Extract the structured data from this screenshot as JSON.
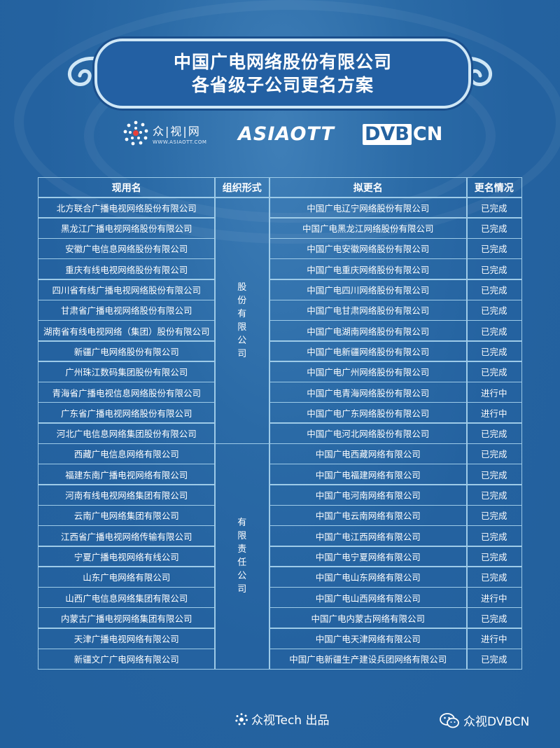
{
  "banner": {
    "line1": "中国广电网络股份有限公司",
    "line2": "各省级子公司更名方案"
  },
  "logos": {
    "zsw_name": "众|视|网",
    "zsw_url": "WWW.ASIAOTT.COM",
    "asiaott": "ASIAOTT",
    "dvbcn_dvb": "DVB",
    "dvbcn_cn": "CN"
  },
  "table": {
    "headers": [
      "现用名",
      "组织形式",
      "拟更名",
      "更名情况"
    ],
    "org_form_1": "股\n份\n有\n限\n公\n司",
    "org_form_2": "有\n限\n责\n任\n公\n司",
    "rows": [
      {
        "current": "北方联合广播电视网络股份有限公司",
        "proposed": "中国广电辽宁网络股份有限公司",
        "status": "已完成"
      },
      {
        "current": "黑龙江广播电视网络股份有限公司",
        "proposed": "中国广电黑龙江网络股份有限公司",
        "status": "已完成"
      },
      {
        "current": "安徽广电信息网络股份有限公司",
        "proposed": "中国广电安徽网络股份有限公司",
        "status": "已完成"
      },
      {
        "current": "重庆有线电视网络股份有限公司",
        "proposed": "中国广电重庆网络股份有限公司",
        "status": "已完成"
      },
      {
        "current": "四川省有线广播电视网络股份有限公司",
        "proposed": "中国广电四川网络股份有限公司",
        "status": "已完成"
      },
      {
        "current": "甘肃省广播电视网络股份有限公司",
        "proposed": "中国广电甘肃网络股份有限公司",
        "status": "已完成"
      },
      {
        "current": "湖南省有线电视网络（集团）股份有限公司",
        "proposed": "中国广电湖南网络股份有限公司",
        "status": "已完成"
      },
      {
        "current": "新疆广电网络股份有限公司",
        "proposed": "中国广电新疆网络股份有限公司",
        "status": "已完成"
      },
      {
        "current": "广州珠江数码集团股份有限公司",
        "proposed": "中国广电广州网络股份有限公司",
        "status": "已完成"
      },
      {
        "current": "青海省广播电视信息网络股份有限公司",
        "proposed": "中国广电青海网络股份有限公司",
        "status": "进行中"
      },
      {
        "current": "广东省广播电视网络股份有限公司",
        "proposed": "中国广电广东网络股份有限公司",
        "status": "进行中"
      },
      {
        "current": "河北广电信息网络集团股份有限公司",
        "proposed": "中国广电河北网络股份有限公司",
        "status": "已完成"
      },
      {
        "current": "西藏广电信息网络有限公司",
        "proposed": "中国广电西藏网络有限公司",
        "status": "已完成"
      },
      {
        "current": "福建东南广播电视网络有限公司",
        "proposed": "中国广电福建网络有限公司",
        "status": "已完成"
      },
      {
        "current": "河南有线电视网络集团有限公司",
        "proposed": "中国广电河南网络有限公司",
        "status": "已完成"
      },
      {
        "current": "云南广电网络集团有限公司",
        "proposed": "中国广电云南网络有限公司",
        "status": "已完成"
      },
      {
        "current": "江西省广播电视网络传输有限公司",
        "proposed": "中国广电江西网络有限公司",
        "status": "已完成"
      },
      {
        "current": "宁夏广播电视网络有线公司",
        "proposed": "中国广电宁夏网络有限公司",
        "status": "已完成"
      },
      {
        "current": "山东广电网络有限公司",
        "proposed": "中国广电山东网络有限公司",
        "status": "已完成"
      },
      {
        "current": "山西广电信息网络集团有限公司",
        "proposed": "中国广电山西网络有限公司",
        "status": "进行中"
      },
      {
        "current": "内蒙古广播电视网络集团有限公司",
        "proposed": "中国广电内蒙古网络有限公司",
        "status": "已完成"
      },
      {
        "current": "天津广播电视网络有限公司",
        "proposed": "中国广电天津网络有限公司",
        "status": "进行中"
      },
      {
        "current": "新疆文广广电网络有限公司",
        "proposed": "中国广电新疆生产建设兵团网络有限公司",
        "status": "已完成"
      }
    ]
  },
  "footer": {
    "producer": "众视Tech 出品",
    "wechat": "众视DVBCN"
  },
  "colors": {
    "background": "#2462a0",
    "border": "#9ecbe8",
    "banner_border": "#cfe7f6"
  }
}
